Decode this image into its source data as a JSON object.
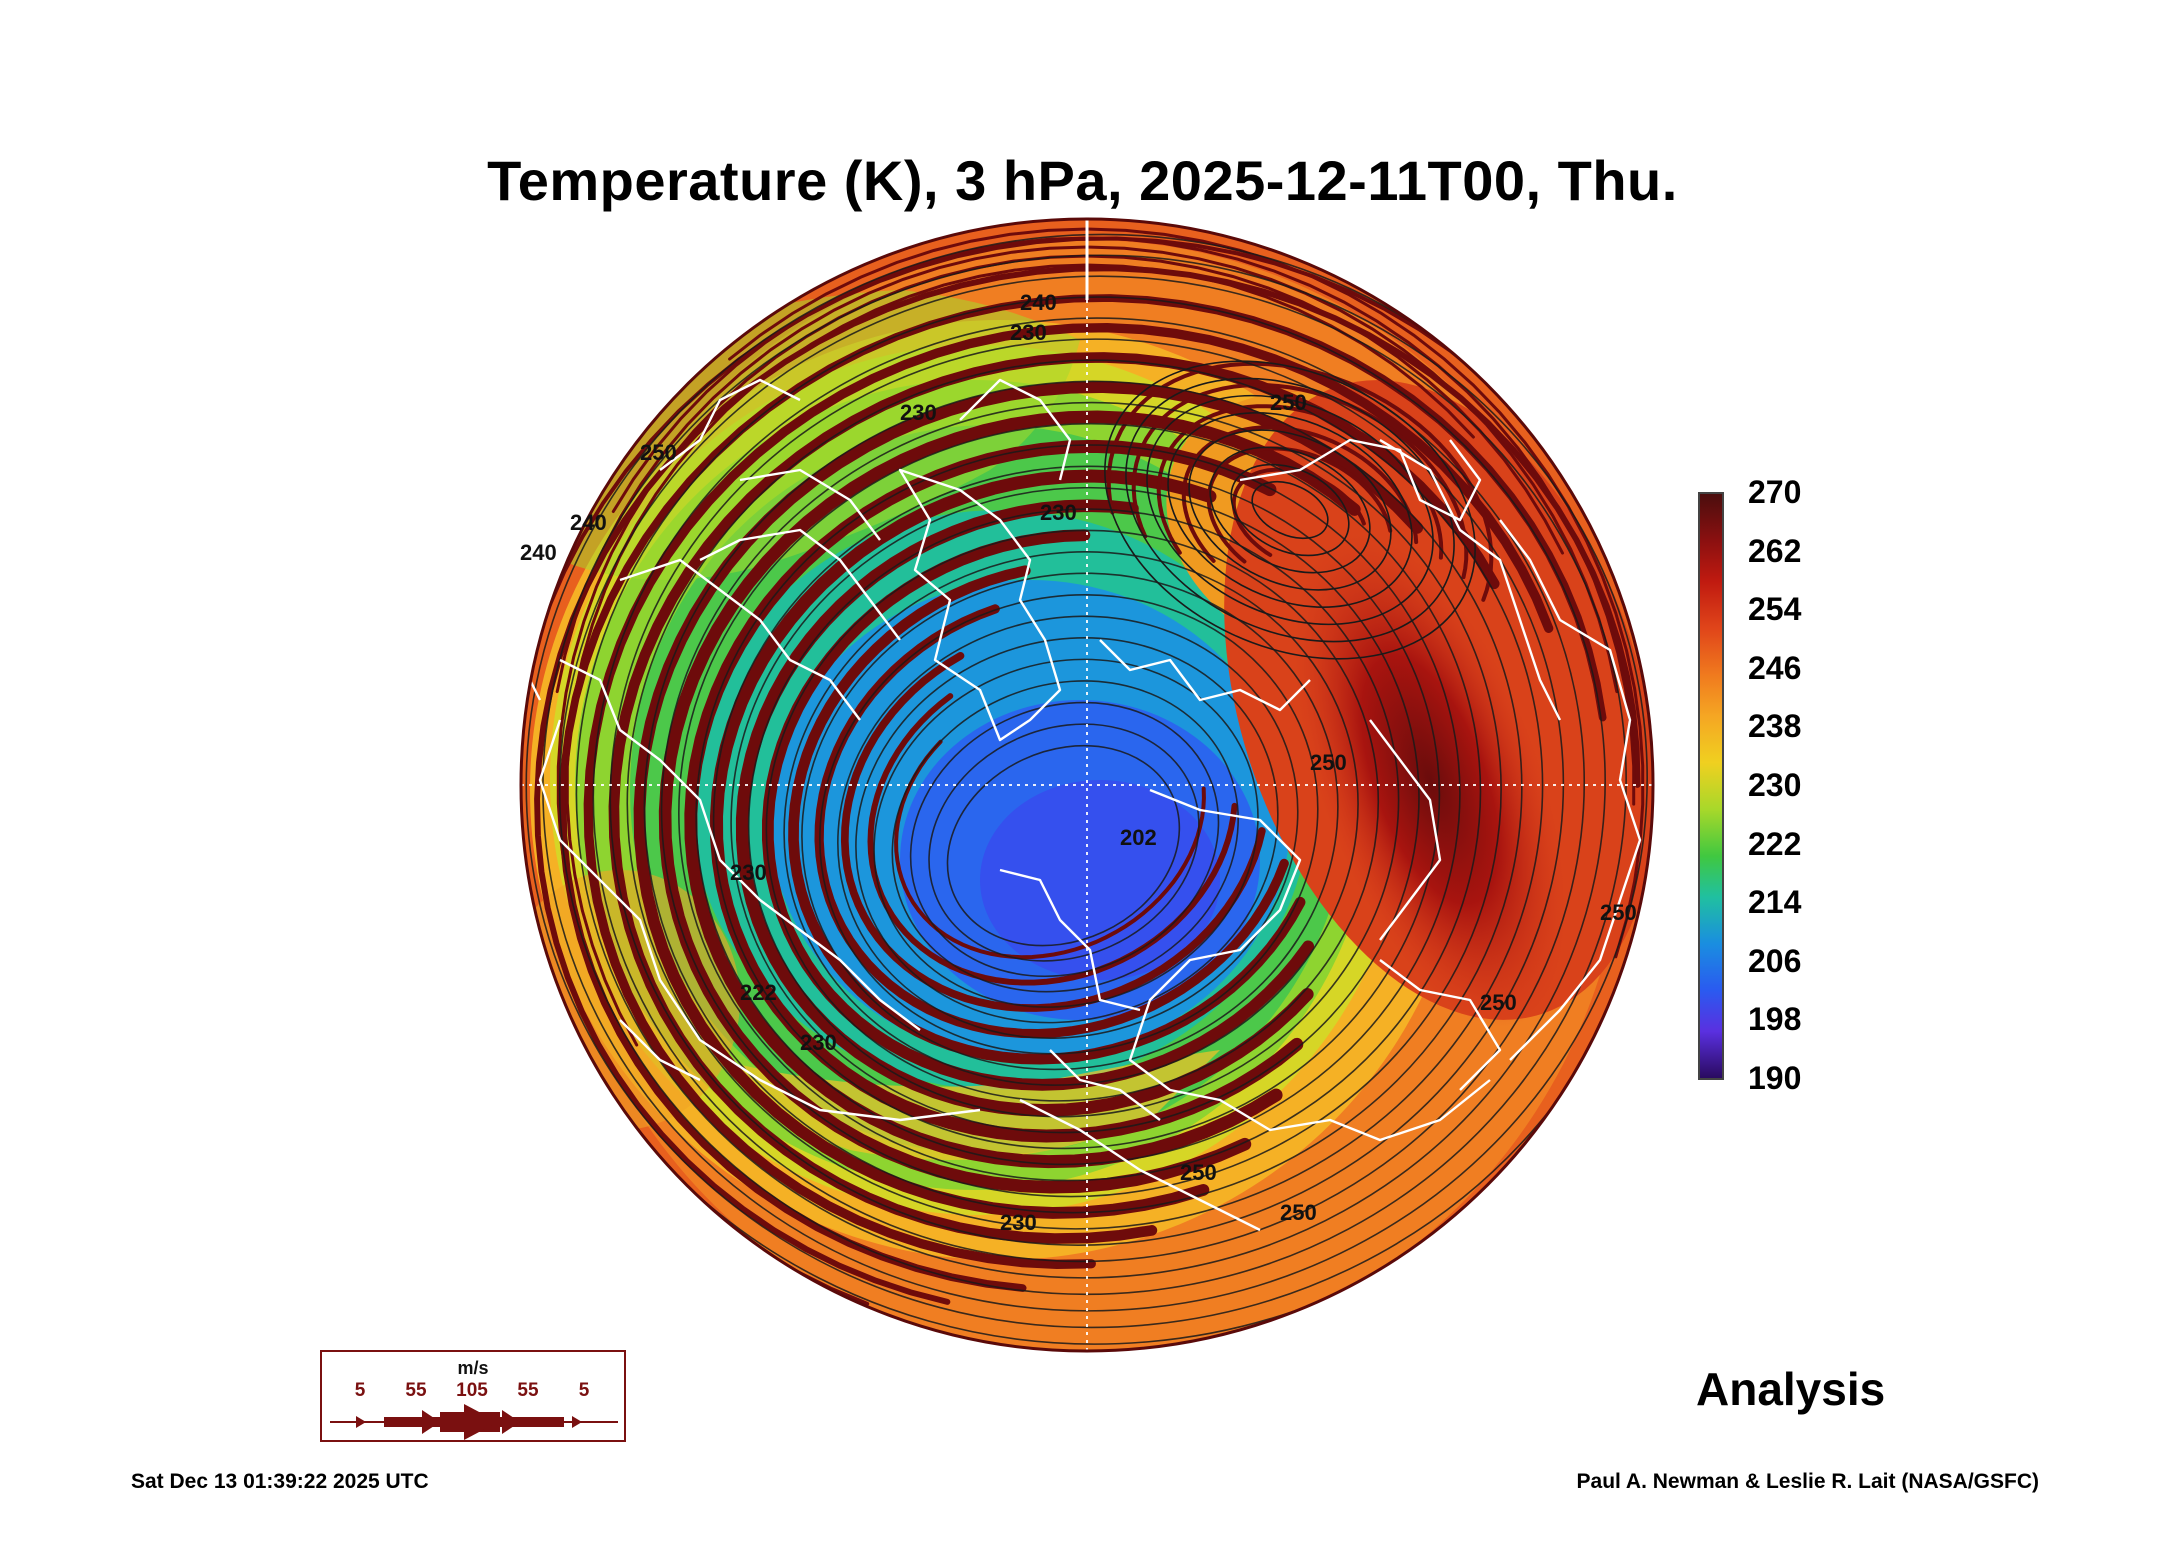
{
  "title": "Temperature (K), 3 hPa, 2025-12-11T00, Thu.",
  "colorbar": {
    "labels": [
      "270",
      "262",
      "254",
      "246",
      "238",
      "230",
      "222",
      "214",
      "206",
      "198",
      "190"
    ],
    "colors": [
      "#4b0e0e",
      "#8b1010",
      "#c01a10",
      "#e0451a",
      "#f07a1e",
      "#f5a623",
      "#f0d020",
      "#a8d82a",
      "#40c840",
      "#20c0a0",
      "#1a8ee0",
      "#2a5af0",
      "#5a30e0",
      "#2a0a60"
    ]
  },
  "contour_labels": [
    "240",
    "230",
    "250",
    "250",
    "240",
    "250",
    "230",
    "230",
    "250",
    "230",
    "202",
    "230",
    "250",
    "250",
    "230",
    "240",
    "222",
    "250"
  ],
  "wind_legend": {
    "unit": "m/s",
    "ticks": [
      "5",
      "55",
      "105",
      "55",
      "5"
    ],
    "color": "#7a1010"
  },
  "analysis_label": "Analysis",
  "timestamp": "Sat Dec 13 01:39:22 2025 UTC",
  "credit": "Paul A. Newman & Leslie R. Lait (NASA/GSFC)"
}
